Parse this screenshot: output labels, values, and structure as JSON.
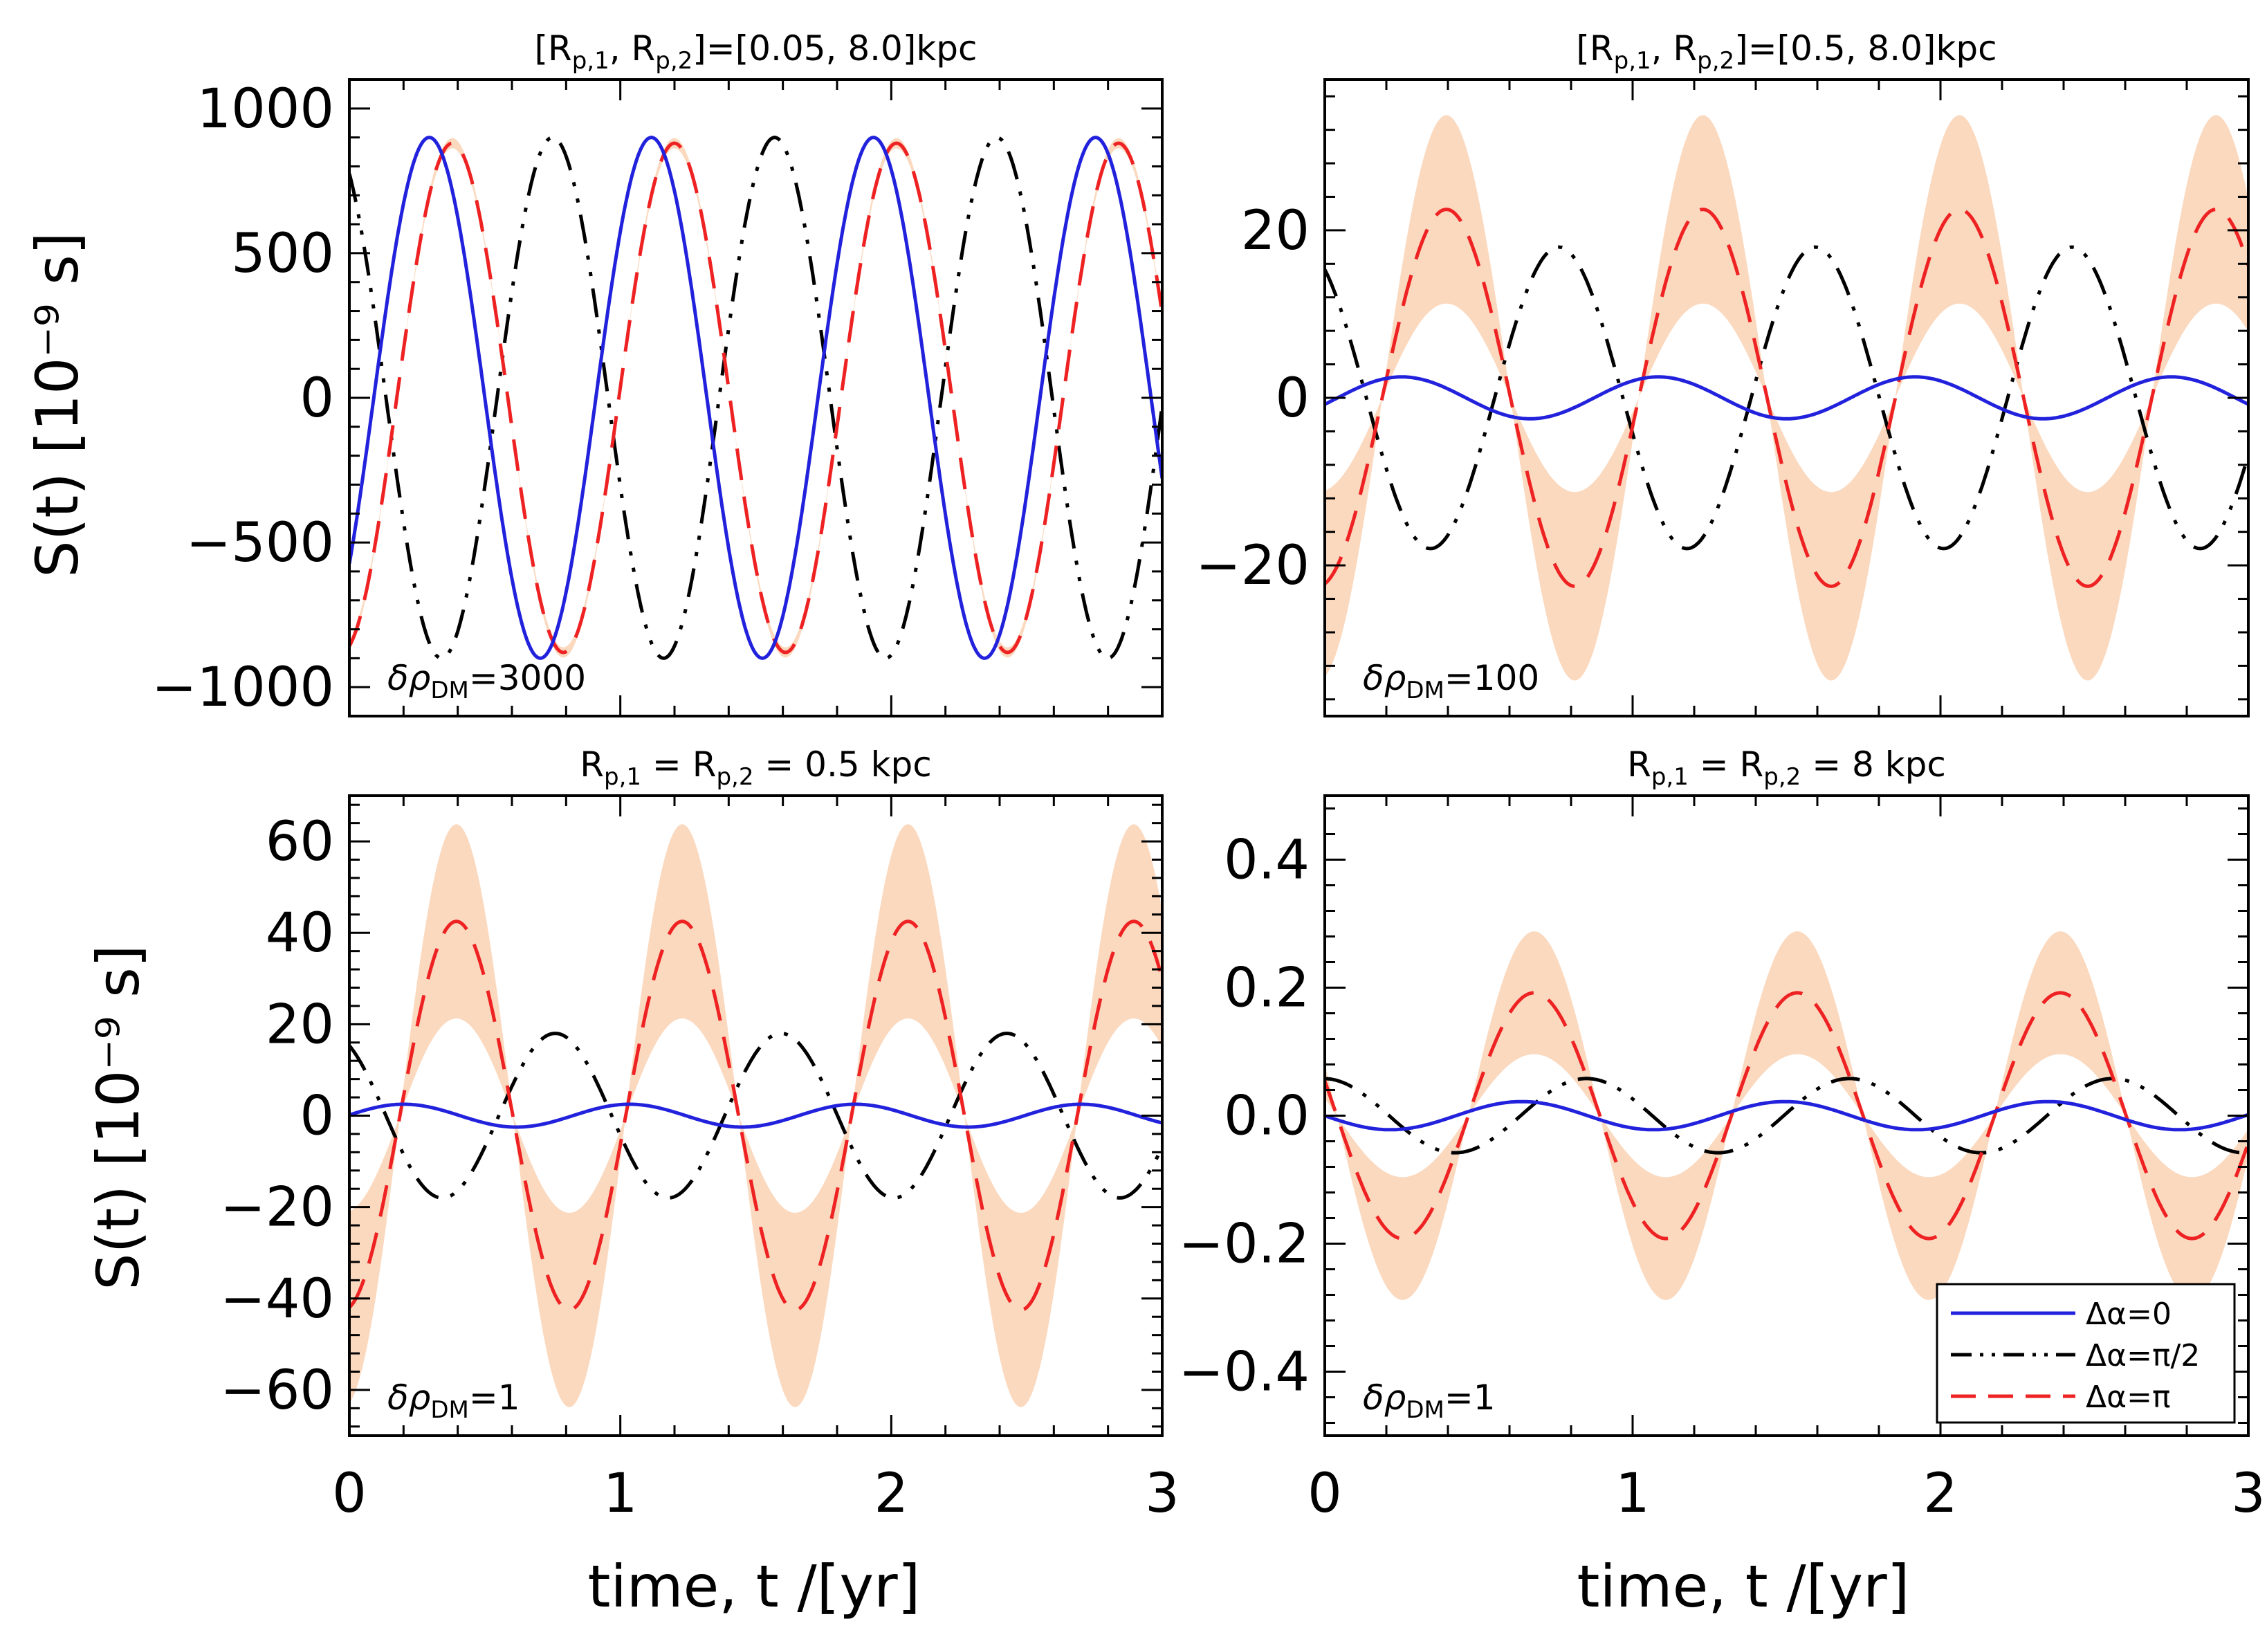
{
  "figure": {
    "xlabel": "time, t /[yr]",
    "ylabel": "S(t) [10⁻⁹ s]"
  },
  "legend": {
    "entries": [
      {
        "key": "d0",
        "label": "Δα=0",
        "color": "#2222dd",
        "style": "solid"
      },
      {
        "key": "d1",
        "label": "Δα=π/2",
        "color": "#000000",
        "style": "dashdotdot"
      },
      {
        "key": "d2",
        "label": "Δα=π",
        "color": "#ee2222",
        "style": "dashed"
      }
    ]
  },
  "chart_data": [
    {
      "type": "line",
      "title": "[Rp,1, Rp,2]=[0.05, 8.0]kpc",
      "title_parts": {
        "a": "[R",
        "s1": "p,1",
        "b": ", R",
        "s2": "p,2",
        "c": "]=[0.05, 8.0]kpc"
      },
      "annotation": {
        "prefix": "δρ",
        "sub": "DM",
        "value": "=3000"
      },
      "xlim": [
        0,
        3
      ],
      "ylim": [
        -1100,
        1100
      ],
      "xticks": [
        0,
        1,
        2,
        3
      ],
      "yticks": [
        -1000,
        -500,
        0,
        500,
        1000
      ],
      "ytick_labels": [
        "−1000",
        "−500",
        "0",
        "500",
        "1000"
      ],
      "show_xlabels": false,
      "show_ylabel": true,
      "band_color": "#fbd9bf",
      "series": [
        {
          "key": "d0",
          "name": "Δα=0",
          "amplitude": 900,
          "frequency_per_yr": 1.22,
          "phase_yr": 0.295
        },
        {
          "key": "d1",
          "name": "Δα=π/2",
          "amplitude": 900,
          "frequency_per_yr": 1.22,
          "phase_yr": 0.75
        },
        {
          "key": "d2",
          "name": "Δα=π",
          "amplitude": 880,
          "frequency_per_yr": 1.22,
          "phase_yr": 0.38,
          "band_fraction": 0.02
        }
      ]
    },
    {
      "type": "line",
      "title": "[Rp,1, Rp,2]=[0.5, 8.0]kpc",
      "title_parts": {
        "a": "[R",
        "s1": "p,1",
        "b": ", R",
        "s2": "p,2",
        "c": "]=[0.5, 8.0]kpc"
      },
      "annotation": {
        "prefix": "δρ",
        "sub": "DM",
        "value": "=100"
      },
      "xlim": [
        0,
        3
      ],
      "ylim": [
        -38,
        38
      ],
      "xticks": [
        0,
        1,
        2,
        3
      ],
      "yticks": [
        -20,
        0,
        20
      ],
      "ytick_labels": [
        "−20",
        "0",
        "20"
      ],
      "show_xlabels": false,
      "show_ylabel": false,
      "band_color": "#fbd9bf",
      "series": [
        {
          "key": "d0",
          "name": "Δα=0",
          "amplitude": 2.5,
          "frequency_per_yr": 1.2,
          "phase_yr": 0.25
        },
        {
          "key": "d1",
          "name": "Δα=π/2",
          "amplitude": 18,
          "frequency_per_yr": 1.2,
          "phase_yr": 0.76
        },
        {
          "key": "d2",
          "name": "Δα=π",
          "amplitude": 22.5,
          "frequency_per_yr": 1.2,
          "phase_yr": 0.395,
          "band_fraction": 0.5
        }
      ]
    },
    {
      "type": "line",
      "title": "Rp,1 = Rp,2 = 0.5 kpc",
      "title_parts": {
        "a": "R",
        "s1": "p,1",
        "b": " = R",
        "s2": "p,2",
        "c": " = 0.5 kpc"
      },
      "annotation": {
        "prefix": "δρ",
        "sub": "DM",
        "value": "=1"
      },
      "xlim": [
        0,
        3
      ],
      "ylim": [
        -70,
        70
      ],
      "xticks": [
        0,
        1,
        2,
        3
      ],
      "xtick_labels": [
        "0",
        "1",
        "2",
        "3"
      ],
      "yticks": [
        -60,
        -40,
        -20,
        0,
        20,
        40,
        60
      ],
      "ytick_labels": [
        "−60",
        "−40",
        "−20",
        "0",
        "20",
        "40",
        "60"
      ],
      "show_xlabels": true,
      "show_ylabel": true,
      "band_color": "#fbd9bf",
      "series": [
        {
          "key": "d0",
          "name": "Δα=0",
          "amplitude": 2.5,
          "frequency_per_yr": 1.2,
          "phase_yr": 0.2
        },
        {
          "key": "d1",
          "name": "Δα=π/2",
          "amplitude": 18,
          "frequency_per_yr": 1.2,
          "phase_yr": 0.76
        },
        {
          "key": "d2",
          "name": "Δα=π",
          "amplitude": 42.5,
          "frequency_per_yr": 1.2,
          "phase_yr": 0.395,
          "band_fraction": 0.5
        }
      ]
    },
    {
      "type": "line",
      "title": "Rp,1 = Rp,2 = 8 kpc",
      "title_parts": {
        "a": "R",
        "s1": "p,1",
        "b": " = R",
        "s2": "p,2",
        "c": " = 8 kpc"
      },
      "annotation": {
        "prefix": "δρ",
        "sub": "DM",
        "value": "=1"
      },
      "xlim": [
        0,
        3
      ],
      "ylim": [
        -0.5,
        0.5
      ],
      "xticks": [
        0,
        1,
        2,
        3
      ],
      "xtick_labels": [
        "0",
        "1",
        "2",
        "3"
      ],
      "yticks": [
        -0.4,
        -0.2,
        0.0,
        0.2,
        0.4
      ],
      "ytick_labels": [
        "−0.4",
        "−0.2",
        "0.0",
        "0.2",
        "0.4"
      ],
      "show_xlabels": true,
      "show_ylabel": false,
      "has_legend": true,
      "band_color": "#fbd9bf",
      "series": [
        {
          "key": "d0",
          "name": "Δα=0",
          "amplitude": 0.022,
          "frequency_per_yr": 1.17,
          "phase_yr": 0.64
        },
        {
          "key": "d1",
          "name": "Δα=π/2",
          "amplitude": 0.058,
          "frequency_per_yr": 1.17,
          "phase_yr": 0.85
        },
        {
          "key": "d2",
          "name": "Δα=π",
          "amplitude": 0.192,
          "frequency_per_yr": 1.17,
          "phase_yr": 0.68,
          "band_fraction": 0.5
        }
      ]
    }
  ]
}
